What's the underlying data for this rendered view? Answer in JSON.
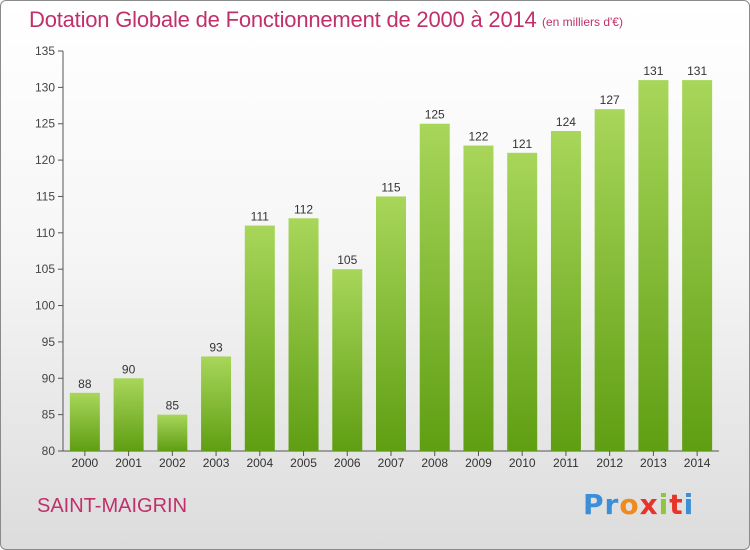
{
  "title": "Dotation Globale de Fonctionnement de 2000 à 2014",
  "unit": "(en milliers d'€)",
  "commune": "SAINT-MAIGRIN",
  "logo": {
    "letters": [
      "P",
      "r",
      "o",
      "x",
      "i",
      "t",
      "i"
    ],
    "colors": [
      "#3a8fd6",
      "#3a8fd6",
      "#f08a1c",
      "#e8332a",
      "#8cc63f",
      "#e8332a",
      "#3a8fd6"
    ]
  },
  "colors": {
    "bar_top": "#a8d65a",
    "bar_bottom": "#5f9e13",
    "text": "#c0306a",
    "axis": "#555555"
  },
  "chart_data": {
    "type": "bar",
    "title": "Dotation Globale de Fonctionnement de 2000 à 2014",
    "xlabel": "",
    "ylabel": "",
    "categories": [
      "2000",
      "2001",
      "2002",
      "2003",
      "2004",
      "2005",
      "2006",
      "2007",
      "2008",
      "2009",
      "2010",
      "2011",
      "2012",
      "2013",
      "2014"
    ],
    "values": [
      88,
      90,
      85,
      93,
      111,
      112,
      105,
      115,
      125,
      122,
      121,
      124,
      127,
      131,
      131
    ],
    "data_labels": [
      "88",
      "90",
      "85",
      "93",
      "111",
      "112",
      "105",
      "115",
      "125",
      "122",
      "121",
      "124",
      "127",
      "131",
      "131"
    ],
    "ylim": [
      80,
      135
    ],
    "yticks": [
      80,
      85,
      90,
      95,
      100,
      105,
      110,
      115,
      120,
      125,
      130,
      135
    ],
    "grid": false,
    "legend": "none"
  }
}
